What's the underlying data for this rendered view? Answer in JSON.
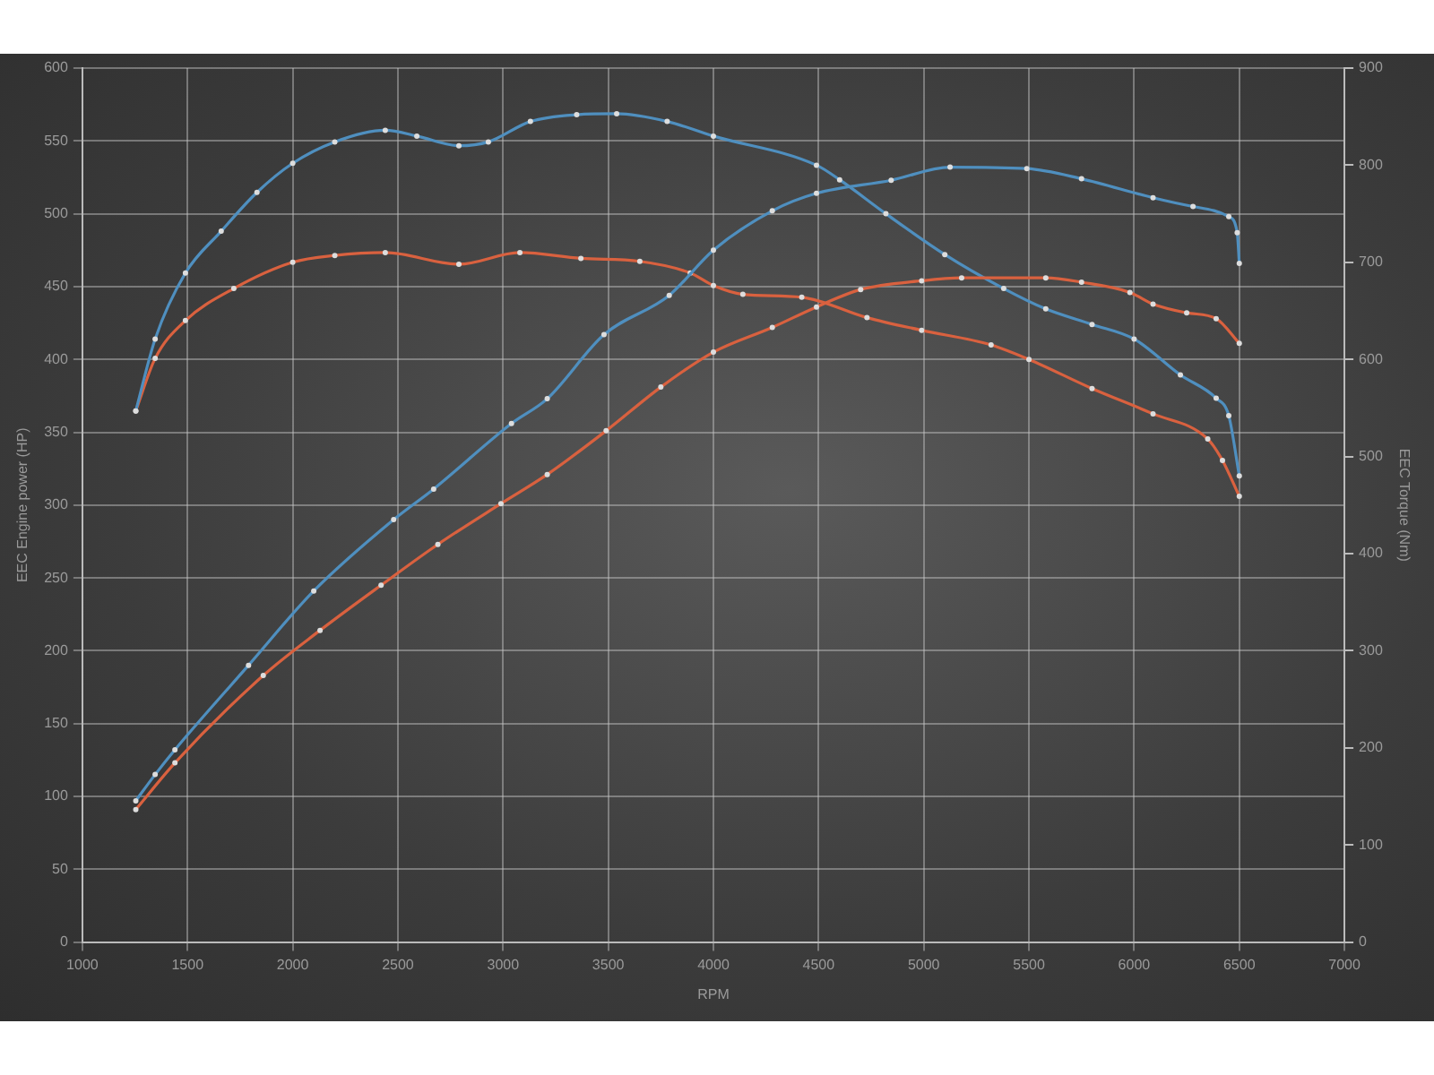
{
  "chart_data": {
    "type": "line",
    "xlabel": "RPM",
    "ylabel": "EEC Engine power (HP)",
    "y2label": "EEC Torque (Nm)",
    "xlim": [
      1000,
      7000
    ],
    "xticks": [
      1000,
      1500,
      2000,
      2500,
      3000,
      3500,
      4000,
      4500,
      5000,
      5500,
      6000,
      6500,
      7000
    ],
    "ylim": [
      0,
      600
    ],
    "yticks": [
      0,
      50,
      100,
      150,
      200,
      250,
      300,
      350,
      400,
      450,
      500,
      550,
      600
    ],
    "y2lim": [
      0,
      900
    ],
    "y2ticks": [
      0,
      100,
      200,
      300,
      400,
      500,
      600,
      700,
      800,
      900
    ],
    "grid": true,
    "legend": false,
    "marker": "circle",
    "line_style": "solid",
    "series": [
      {
        "color": "#4f8fbf",
        "x": [
          1254,
          1346,
          1440,
          1790,
          2100,
          2480,
          2670,
          3040,
          3210,
          3480,
          3790,
          4000,
          4280,
          4490,
          4845,
          5125,
          5490,
          5750,
          6090,
          6280,
          6450,
          6490,
          6500
        ],
        "values": [
          97,
          115,
          132,
          190,
          241,
          290,
          311,
          356,
          373,
          417,
          444,
          475,
          502,
          514,
          523,
          532,
          531,
          524,
          511,
          505,
          498,
          487,
          466
        ]
      },
      {
        "color": "#d9613f",
        "x": [
          1254,
          1440,
          1860,
          2130,
          2420,
          2690,
          2990,
          3210,
          3490,
          3750,
          4000,
          4280,
          4490,
          4700,
          4990,
          5180,
          5580,
          5750,
          5980,
          6090,
          6250,
          6390,
          6500
        ],
        "values": [
          91,
          123,
          183,
          214,
          245,
          273,
          301,
          321,
          351,
          381,
          405,
          422,
          436,
          448,
          454,
          456,
          456,
          453,
          446,
          438,
          432,
          428,
          411
        ]
      },
      {
        "color": "#4f8fbf",
        "axis": "y2",
        "x": [
          1254,
          1346,
          1490,
          1660,
          1830,
          2000,
          2200,
          2440,
          2590,
          2790,
          2930,
          3130,
          3350,
          3540,
          3780,
          4000,
          4490,
          4600,
          4820,
          5100,
          5380,
          5580,
          5800,
          6000,
          6220,
          6390,
          6450,
          6500
        ],
        "values": [
          547,
          621,
          689,
          732,
          772,
          802,
          824,
          836,
          830,
          820,
          824,
          845,
          852,
          853,
          845,
          830,
          800,
          785,
          750,
          708,
          673,
          652,
          636,
          621,
          584,
          560,
          542,
          480
        ]
      },
      {
        "color": "#d9613f",
        "axis": "y2",
        "x": [
          1254,
          1346,
          1490,
          1720,
          2000,
          2200,
          2440,
          2790,
          3080,
          3370,
          3650,
          3890,
          4000,
          4140,
          4420,
          4730,
          4990,
          5320,
          5500,
          5800,
          6090,
          6350,
          6420,
          6500
        ],
        "values": [
          547,
          601,
          640,
          673,
          700,
          707,
          710,
          698,
          710,
          704,
          701,
          689,
          676,
          667,
          664,
          643,
          630,
          615,
          600,
          570,
          544,
          518,
          496,
          459
        ]
      }
    ]
  }
}
